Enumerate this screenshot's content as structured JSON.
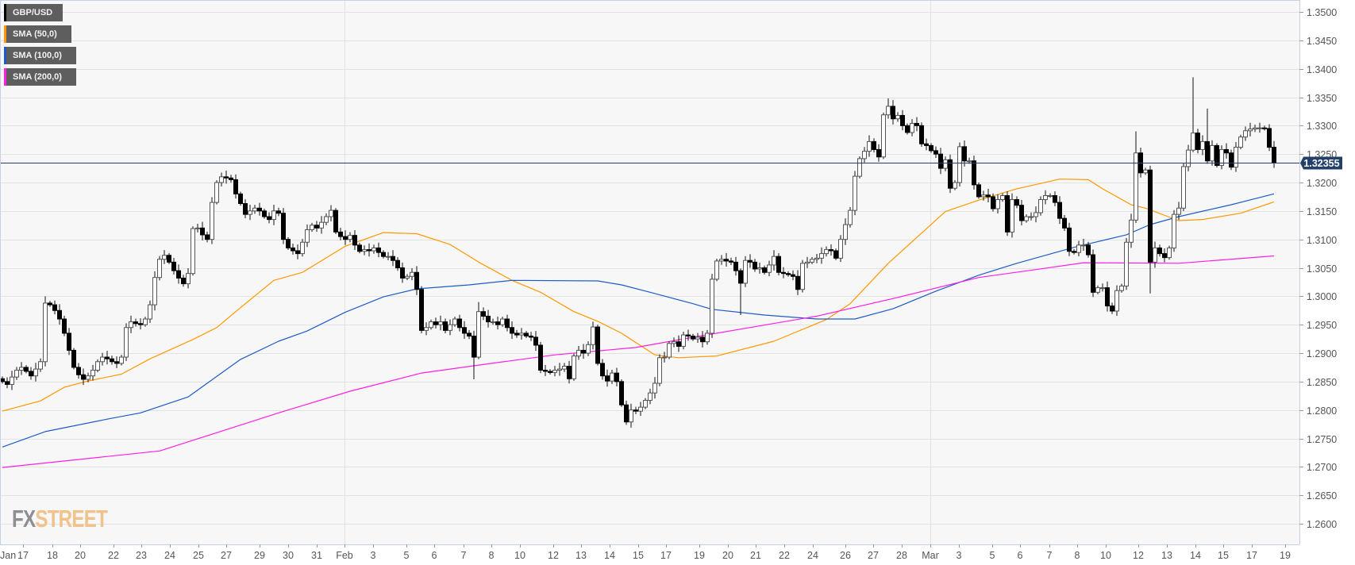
{
  "legend": [
    {
      "label": "GBP/USD",
      "color": "#000000"
    },
    {
      "label": "SMA (50,0)",
      "color": "#ff9800"
    },
    {
      "label": "SMA (100,0)",
      "color": "#1e5bc6"
    },
    {
      "label": "SMA (200,0)",
      "color": "#ff1ee6"
    }
  ],
  "watermark": {
    "part1": "FX",
    "part2": "STREET"
  },
  "current_price": {
    "label": "1.32355",
    "value": 1.32355,
    "color": "#23406a"
  },
  "chart_data": {
    "type": "candlestick",
    "title": "GBP/USD",
    "xlabel": "",
    "ylabel": "",
    "ylim": [
      1.2564,
      1.3521
    ],
    "grid": true,
    "legend_position": "top-left",
    "y_ticks": [
      "1.2600",
      "1.2650",
      "1.2700",
      "1.2750",
      "1.2800",
      "1.2850",
      "1.2900",
      "1.2950",
      "1.3000",
      "1.3050",
      "1.3100",
      "1.3150",
      "1.3200",
      "1.3250",
      "1.3300",
      "1.3350",
      "1.3400",
      "1.3450",
      "1.3500"
    ],
    "x_ticks": [
      "Jan",
      "17",
      "18",
      "20",
      "22",
      "23",
      "24",
      "25",
      "27",
      "29",
      "30",
      "31",
      "Feb",
      "3",
      "5",
      "6",
      "7",
      "8",
      "10",
      "12",
      "13",
      "14",
      "15",
      "17",
      "19",
      "20",
      "21",
      "22",
      "24",
      "26",
      "27",
      "28",
      "Mar",
      "3",
      "5",
      "6",
      "7",
      "8",
      "10",
      "12",
      "13",
      "14",
      "15",
      "17",
      "19"
    ],
    "first_open": 1.2855,
    "closes": [
      1.285,
      1.2845,
      1.2858,
      1.287,
      1.2875,
      1.2868,
      1.286,
      1.2872,
      1.2885,
      1.2988,
      1.2985,
      1.2975,
      1.296,
      1.2935,
      1.2905,
      1.2875,
      1.2862,
      1.2854,
      1.286,
      1.287,
      1.2885,
      1.2893,
      1.289,
      1.2885,
      1.2882,
      1.2893,
      1.2945,
      1.2955,
      1.2952,
      1.295,
      1.296,
      1.2985,
      1.3033,
      1.3065,
      1.3072,
      1.306,
      1.3045,
      1.3032,
      1.3022,
      1.304,
      1.3119,
      1.312,
      1.3108,
      1.31,
      1.3165,
      1.32,
      1.321,
      1.3208,
      1.3205,
      1.318,
      1.3163,
      1.3144,
      1.315,
      1.3155,
      1.315,
      1.314,
      1.3135,
      1.315,
      1.3146,
      1.31,
      1.3085,
      1.308,
      1.3075,
      1.3095,
      1.3117,
      1.3125,
      1.312,
      1.313,
      1.314,
      1.3151,
      1.3113,
      1.3105,
      1.31,
      1.3107,
      1.309,
      1.3079,
      1.3082,
      1.308,
      1.3085,
      1.3077,
      1.307,
      1.307,
      1.3063,
      1.305,
      1.3032,
      1.3035,
      1.3042,
      1.3012,
      1.294,
      1.2945,
      1.2955,
      1.295,
      1.2955,
      1.294,
      1.295,
      1.296,
      1.2945,
      1.2935,
      1.293,
      1.2893,
      1.2973,
      1.2965,
      1.2955,
      1.2955,
      1.295,
      1.296,
      1.2945,
      1.2935,
      1.2932,
      1.2935,
      1.293,
      1.2928,
      1.2914,
      1.287,
      1.2868,
      1.2866,
      1.287,
      1.2872,
      1.2877,
      1.2855,
      1.2895,
      1.2905,
      1.29,
      1.2915,
      1.2946,
      1.2882,
      1.286,
      1.2851,
      1.2865,
      1.285,
      1.2809,
      1.2779,
      1.28,
      1.2798,
      1.2805,
      1.2817,
      1.283,
      1.2847,
      1.2892,
      1.2893,
      1.2917,
      1.292,
      1.2912,
      1.2932,
      1.293,
      1.2925,
      1.2928,
      1.292,
      1.2935,
      1.303,
      1.3062,
      1.3065,
      1.3062,
      1.306,
      1.3045,
      1.3023,
      1.3063,
      1.306,
      1.3048,
      1.305,
      1.3042,
      1.3055,
      1.307,
      1.3042,
      1.304,
      1.3038,
      1.3035,
      1.3012,
      1.3058,
      1.306,
      1.3065,
      1.3067,
      1.3075,
      1.3082,
      1.308,
      1.3067,
      1.31,
      1.3126,
      1.3151,
      1.3211,
      1.3242,
      1.3255,
      1.3272,
      1.3258,
      1.3245,
      1.3319,
      1.3334,
      1.3312,
      1.3318,
      1.33,
      1.3288,
      1.3304,
      1.33,
      1.3268,
      1.3265,
      1.3256,
      1.325,
      1.3225,
      1.324,
      1.319,
      1.32,
      1.3263,
      1.3238,
      1.3238,
      1.3196,
      1.3175,
      1.3178,
      1.3175,
      1.3154,
      1.317,
      1.3177,
      1.3113,
      1.317,
      1.316,
      1.3133,
      1.314,
      1.314,
      1.3147,
      1.317,
      1.3177,
      1.3177,
      1.3165,
      1.3137,
      1.312,
      1.3079,
      1.3077,
      1.309,
      1.309,
      1.3073,
      1.3007,
      1.3015,
      1.3015,
      1.2983,
      1.2974,
      1.301,
      1.3018,
      1.3095,
      1.3134,
      1.3252,
      1.3217,
      1.3222,
      1.306,
      1.3085,
      1.3075,
      1.3068,
      1.3085,
      1.3144,
      1.3155,
      1.3228,
      1.3257,
      1.3287,
      1.3258,
      1.3272,
      1.3238,
      1.3265,
      1.323,
      1.3258,
      1.3252,
      1.3227,
      1.3262,
      1.328,
      1.3291,
      1.3294,
      1.3296,
      1.3296,
      1.3295,
      1.3262,
      1.32355
    ],
    "wick_overrides": [
      [
        9,
        1.3,
        null
      ],
      [
        99,
        null,
        1.2854
      ],
      [
        100,
        1.299,
        null
      ],
      [
        131,
        null,
        1.2774
      ],
      [
        155,
        null,
        1.2967
      ],
      [
        186,
        1.3348,
        null
      ],
      [
        238,
        1.329,
        null
      ],
      [
        241,
        null,
        1.3005
      ],
      [
        250,
        1.3385,
        null
      ],
      [
        253,
        1.333,
        null
      ]
    ],
    "series": [
      {
        "name": "SMA (50,0)",
        "points": [
          [
            0,
            1.2798
          ],
          [
            8,
            1.2816
          ],
          [
            13,
            1.284
          ],
          [
            18,
            1.2851
          ],
          [
            25,
            1.2863
          ],
          [
            31,
            1.289
          ],
          [
            40,
            1.2924
          ],
          [
            45,
            1.2945
          ],
          [
            50,
            1.298
          ],
          [
            57,
            1.3028
          ],
          [
            63,
            1.3042
          ],
          [
            72,
            1.3088
          ],
          [
            80,
            1.3112
          ],
          [
            87,
            1.311
          ],
          [
            94,
            1.3091
          ],
          [
            100,
            1.306
          ],
          [
            107,
            1.3028
          ],
          [
            113,
            1.3007
          ],
          [
            120,
            1.2973
          ],
          [
            125,
            1.2956
          ],
          [
            130,
            1.2935
          ],
          [
            137,
            1.2897
          ],
          [
            142,
            1.2892
          ],
          [
            150,
            1.2895
          ],
          [
            162,
            1.2921
          ],
          [
            173,
            1.2959
          ],
          [
            178,
            1.2987
          ],
          [
            186,
            1.3058
          ],
          [
            198,
            1.3149
          ],
          [
            205,
            1.3169
          ],
          [
            213,
            1.3189
          ],
          [
            222,
            1.3206
          ],
          [
            228,
            1.3205
          ],
          [
            231,
            1.3189
          ],
          [
            237,
            1.3161
          ],
          [
            240,
            1.3155
          ],
          [
            247,
            1.3133
          ],
          [
            252,
            1.3135
          ],
          [
            260,
            1.3146
          ],
          [
            267,
            1.3166
          ]
        ]
      },
      {
        "name": "SMA (100,0)",
        "points": [
          [
            0,
            1.2735
          ],
          [
            9,
            1.2762
          ],
          [
            22,
            1.2784
          ],
          [
            29,
            1.2795
          ],
          [
            39,
            1.2823
          ],
          [
            50,
            1.2889
          ],
          [
            58,
            1.2921
          ],
          [
            64,
            1.2939
          ],
          [
            72,
            1.2972
          ],
          [
            80,
            1.2999
          ],
          [
            87,
            1.3013
          ],
          [
            98,
            1.302
          ],
          [
            107,
            1.3028
          ],
          [
            125,
            1.3027
          ],
          [
            130,
            1.302
          ],
          [
            136,
            1.3007
          ],
          [
            145,
            1.2987
          ],
          [
            149,
            1.2977
          ],
          [
            160,
            1.2967
          ],
          [
            171,
            1.296
          ],
          [
            179,
            1.296
          ],
          [
            187,
            1.2978
          ],
          [
            196,
            1.3009
          ],
          [
            205,
            1.3037
          ],
          [
            213,
            1.3058
          ],
          [
            225,
            1.3086
          ],
          [
            236,
            1.3108
          ],
          [
            241,
            1.3126
          ],
          [
            247,
            1.314
          ],
          [
            258,
            1.3161
          ],
          [
            267,
            1.318
          ]
        ]
      },
      {
        "name": "SMA (200,0)",
        "points": [
          [
            0,
            1.2699
          ],
          [
            33,
            1.2728
          ],
          [
            58,
            1.2795
          ],
          [
            73,
            1.2833
          ],
          [
            88,
            1.2865
          ],
          [
            100,
            1.2879
          ],
          [
            116,
            1.2897
          ],
          [
            133,
            1.291
          ],
          [
            145,
            1.2928
          ],
          [
            171,
            1.2965
          ],
          [
            188,
            1.2998
          ],
          [
            205,
            1.3033
          ],
          [
            217,
            1.3047
          ],
          [
            227,
            1.3059
          ],
          [
            247,
            1.3058
          ],
          [
            267,
            1.3071
          ]
        ]
      }
    ]
  }
}
